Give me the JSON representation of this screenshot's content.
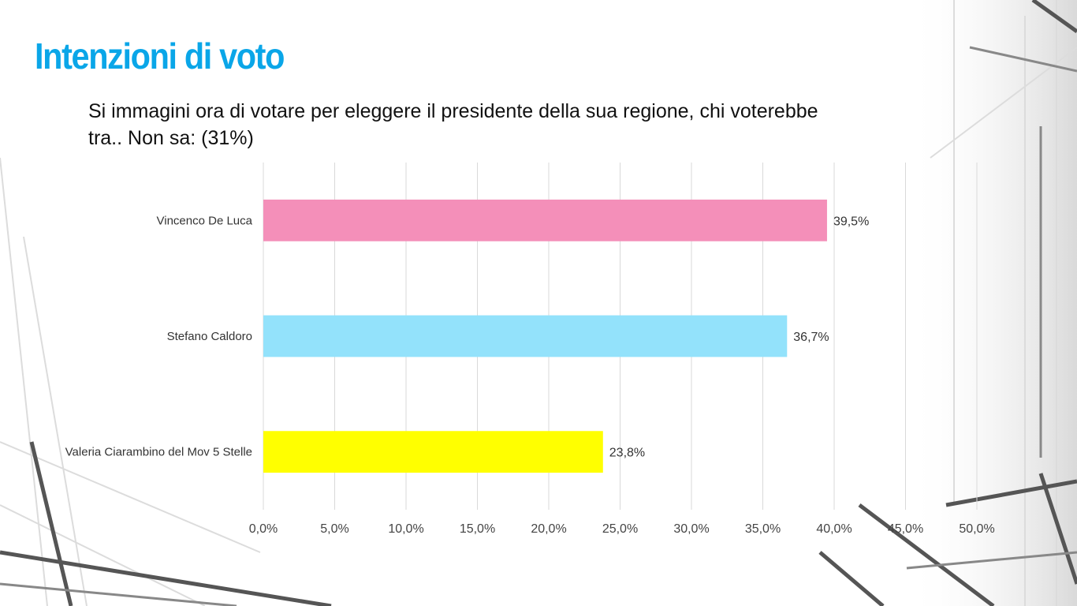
{
  "slide": {
    "title": "Intenzioni di voto",
    "title_color": "#0aa6e8"
  },
  "chart_data": {
    "type": "bar",
    "orientation": "horizontal",
    "title": "Si immagini ora di votare per eleggere il presidente della sua regione, chi voterebbe tra..  Non sa: (31%)",
    "categories": [
      "Vincenco De Luca",
      "Stefano Caldoro",
      "Valeria Ciarambino del Mov 5 Stelle"
    ],
    "values": [
      39.5,
      36.7,
      23.8
    ],
    "value_labels": [
      "39,5%",
      "36,7%",
      "23,8%"
    ],
    "colors": [
      "#f48fb9",
      "#93e2fb",
      "#ffff00"
    ],
    "xlim": [
      0,
      50
    ],
    "x_ticks": [
      0,
      5,
      10,
      15,
      20,
      25,
      30,
      35,
      40,
      45,
      50
    ],
    "x_tick_labels": [
      "0,0%",
      "5,0%",
      "10,0%",
      "15,0%",
      "20,0%",
      "25,0%",
      "30,0%",
      "35,0%",
      "40,0%",
      "45,0%",
      "50,0%"
    ],
    "grid": true,
    "legend": false,
    "xlabel": "",
    "ylabel": ""
  }
}
